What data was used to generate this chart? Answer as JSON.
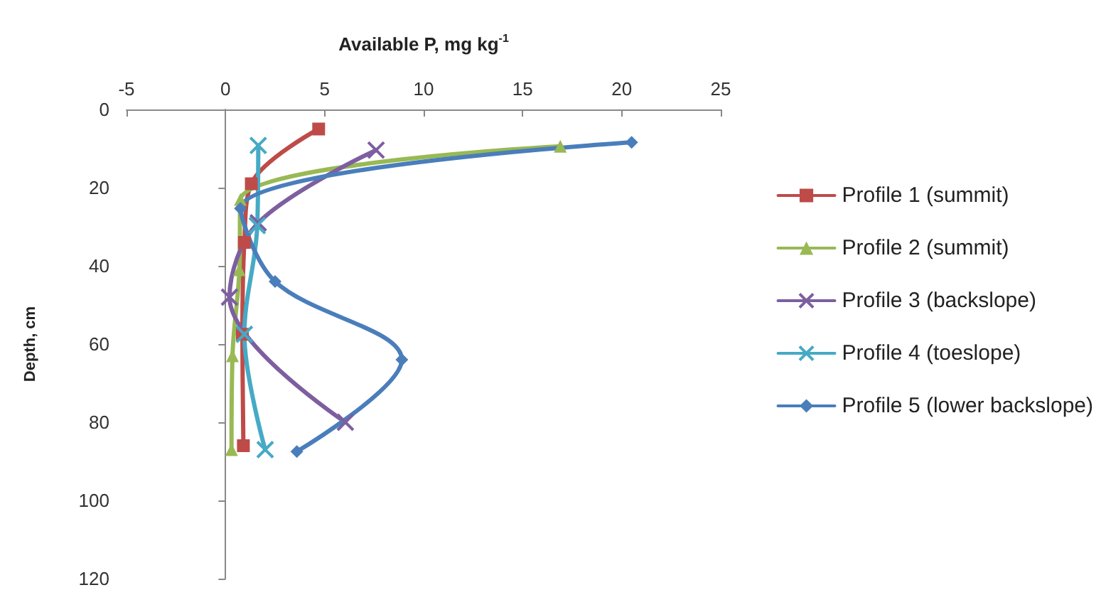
{
  "chart_data": {
    "type": "line",
    "xlabel": "Available P, mg kg$^{-1}$",
    "ylabel": "Depth, cm",
    "xlim": [
      -5,
      25
    ],
    "xticks": [
      -5,
      0,
      5,
      10,
      15,
      20,
      25
    ],
    "ylim": [
      120,
      0
    ],
    "yticks": [
      0,
      20,
      40,
      60,
      80,
      100,
      120
    ],
    "legend": "right",
    "line_style": "solid",
    "series": [
      {
        "name": "Profile 1 (summit)",
        "color": "#be4b48",
        "marker": "square",
        "x": [
          4.7,
          1.3,
          0.95,
          0.85,
          0.9
        ],
        "values": [
          5,
          19,
          34,
          57.5,
          86
        ]
      },
      {
        "name": "Profile 2 (summit)",
        "color": "#98b954",
        "marker": "triangle",
        "x": [
          16.9,
          0.75,
          0.7,
          0.35,
          0.3
        ],
        "values": [
          9.4,
          23,
          41,
          63,
          87
        ]
      },
      {
        "name": "Profile 3 (backslope)",
        "color": "#7d5fa0",
        "marker": "cross",
        "x": [
          7.6,
          1.65,
          0.2,
          6.05
        ],
        "values": [
          10.4,
          29,
          48,
          80
        ]
      },
      {
        "name": "Profile 4 (toeslope)",
        "color": "#46aac5",
        "marker": "cross",
        "x": [
          1.65,
          1.6,
          0.95,
          2.0
        ],
        "values": [
          9.2,
          29.7,
          57.5,
          87
        ]
      },
      {
        "name": "Profile 5 (lower backslope)",
        "color": "#4a7ebb",
        "marker": "diamond",
        "x": [
          20.5,
          0.75,
          2.5,
          8.9,
          3.6
        ],
        "values": [
          8.4,
          25.3,
          44,
          64,
          87.5
        ]
      }
    ]
  }
}
